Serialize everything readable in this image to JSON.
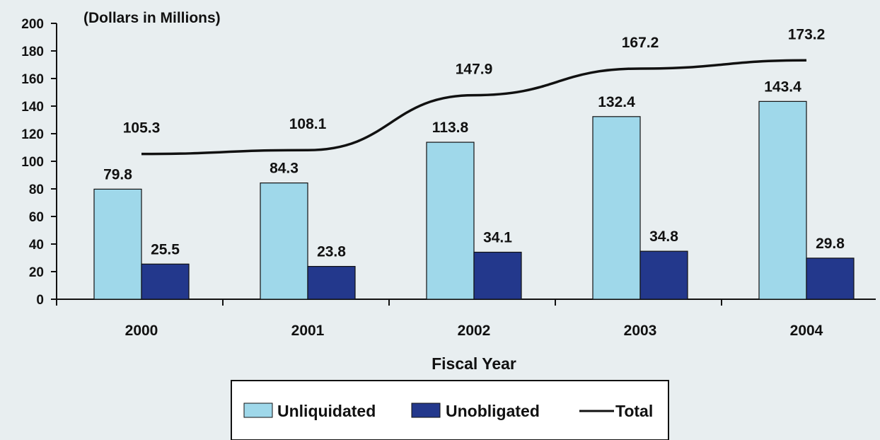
{
  "chart_data": {
    "type": "bar",
    "unit_label": "(Dollars in Millions)",
    "xlabel": "Fiscal Year",
    "ylabel": "",
    "ylim": [
      0,
      200
    ],
    "yticks": [
      "0",
      "20",
      "40",
      "60",
      "80",
      "100",
      "120",
      "140",
      "160",
      "180",
      "200"
    ],
    "categories": [
      "2000",
      "2001",
      "2002",
      "2003",
      "2004"
    ],
    "series": [
      {
        "name": "Unliquidated",
        "type": "bar",
        "color": "#9fd8ea",
        "values": [
          79.8,
          84.3,
          113.8,
          132.4,
          143.4
        ],
        "labels": [
          "79.8",
          "84.3",
          "113.8",
          "132.4",
          "143.4"
        ]
      },
      {
        "name": "Unobligated",
        "type": "bar",
        "color": "#23388c",
        "values": [
          25.5,
          23.8,
          34.1,
          34.8,
          29.8
        ],
        "labels": [
          "25.5",
          "23.8",
          "34.1",
          "34.8",
          "29.8"
        ]
      },
      {
        "name": "Total",
        "type": "line",
        "color": "#111111",
        "values": [
          105.3,
          108.1,
          147.9,
          167.2,
          173.2
        ],
        "labels": [
          "105.3",
          "108.1",
          "147.9",
          "167.2",
          "173.2"
        ]
      }
    ],
    "legend_position": "bottom",
    "grid": false
  }
}
